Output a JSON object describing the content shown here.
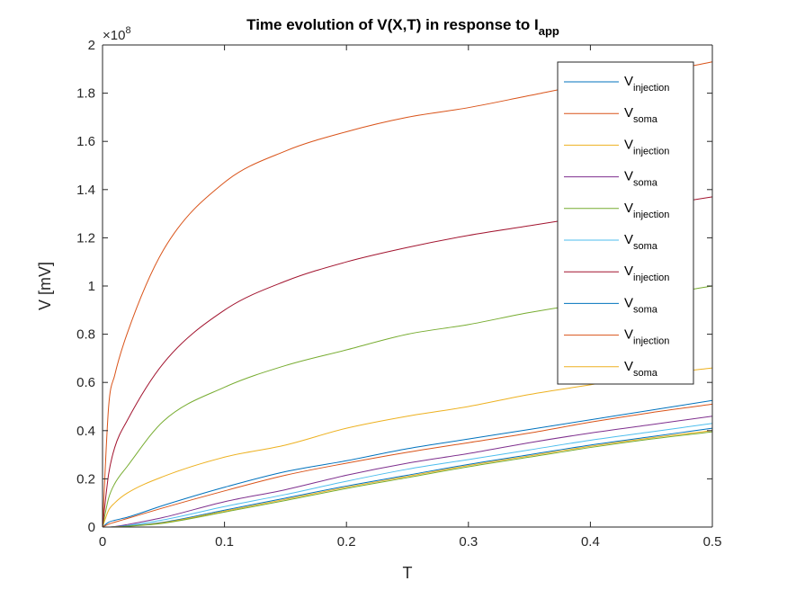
{
  "chart_data": {
    "type": "line",
    "title": "Time evolution of V(X,T) in response to I",
    "title_sub": "app",
    "xlabel": "T",
    "ylabel": "V [mV]",
    "y_exponent_label": "×10",
    "y_exponent_power": "8",
    "xlim": [
      0,
      0.5
    ],
    "ylim": [
      0,
      2
    ],
    "y_scale_factor": 100000000,
    "xticks": [
      0,
      0.1,
      0.2,
      0.3,
      0.4,
      0.5
    ],
    "xtick_labels": [
      "0",
      "0.1",
      "0.2",
      "0.3",
      "0.4",
      "0.5"
    ],
    "yticks": [
      0,
      0.2,
      0.4,
      0.6,
      0.8,
      1,
      1.2,
      1.4,
      1.6,
      1.8,
      2
    ],
    "ytick_labels": [
      "0",
      "0.2",
      "0.4",
      "0.6",
      "0.8",
      "1",
      "1.2",
      "1.4",
      "1.6",
      "1.8",
      "2"
    ],
    "grid": false,
    "legend_position": "top-right",
    "x": [
      0,
      0.005,
      0.01,
      0.02,
      0.05,
      0.1,
      0.15,
      0.2,
      0.25,
      0.3,
      0.35,
      0.4,
      0.45,
      0.5
    ],
    "series": [
      {
        "name": "V",
        "name_sub": "injection",
        "color": "#0072BD",
        "in_legend": true,
        "values": [
          0,
          0.02,
          0.028,
          0.04,
          0.09,
          0.165,
          0.23,
          0.275,
          0.325,
          0.365,
          0.405,
          0.445,
          0.485,
          0.525
        ]
      },
      {
        "name": "V",
        "name_sub": "soma",
        "color": "#D95319",
        "in_legend": true,
        "values": [
          0,
          0.5,
          0.63,
          0.8,
          1.15,
          1.43,
          1.56,
          1.64,
          1.7,
          1.74,
          1.79,
          1.84,
          1.88,
          1.93
        ]
      },
      {
        "name": "V",
        "name_sub": "injection",
        "color": "#EDB120",
        "in_legend": true,
        "values": [
          0,
          0.07,
          0.1,
          0.14,
          0.21,
          0.29,
          0.34,
          0.41,
          0.46,
          0.5,
          0.55,
          0.59,
          0.63,
          0.66
        ]
      },
      {
        "name": "V",
        "name_sub": "soma",
        "color": "#7E2F8E",
        "in_legend": true,
        "values": [
          0,
          0.0,
          0.002,
          0.01,
          0.04,
          0.105,
          0.155,
          0.215,
          0.265,
          0.305,
          0.35,
          0.39,
          0.425,
          0.46
        ]
      },
      {
        "name": "V",
        "name_sub": "injection",
        "color": "#77AC30",
        "in_legend": true,
        "values": [
          0,
          0.12,
          0.18,
          0.25,
          0.44,
          0.58,
          0.67,
          0.735,
          0.8,
          0.84,
          0.89,
          0.93,
          0.96,
          1.0
        ]
      },
      {
        "name": "V",
        "name_sub": "soma",
        "color": "#4DBEEE",
        "in_legend": true,
        "values": [
          0,
          0.0,
          0.001,
          0.006,
          0.03,
          0.085,
          0.135,
          0.19,
          0.24,
          0.28,
          0.32,
          0.36,
          0.395,
          0.43
        ]
      },
      {
        "name": "V",
        "name_sub": "injection",
        "color": "#A2142F",
        "in_legend": true,
        "values": [
          0,
          0.22,
          0.33,
          0.44,
          0.68,
          0.9,
          1.02,
          1.1,
          1.16,
          1.21,
          1.25,
          1.29,
          1.33,
          1.37
        ]
      },
      {
        "name": "V",
        "name_sub": "soma",
        "color": "#0072BD",
        "in_legend": true,
        "values": [
          0,
          0.0,
          0.001,
          0.004,
          0.02,
          0.07,
          0.12,
          0.17,
          0.215,
          0.26,
          0.3,
          0.34,
          0.375,
          0.41
        ]
      },
      {
        "name": "V",
        "name_sub": "injection",
        "color": "#D95319",
        "in_legend": true,
        "values": [
          0,
          0.012,
          0.02,
          0.035,
          0.08,
          0.15,
          0.215,
          0.265,
          0.31,
          0.35,
          0.39,
          0.435,
          0.475,
          0.51
        ]
      },
      {
        "name": "V",
        "name_sub": "soma",
        "color": "#EDB120",
        "in_legend": true,
        "values": [
          0,
          0.0,
          0.001,
          0.003,
          0.018,
          0.066,
          0.115,
          0.165,
          0.21,
          0.255,
          0.295,
          0.335,
          0.37,
          0.4
        ]
      },
      {
        "color": "#77AC30",
        "in_legend": false,
        "values": [
          0,
          0.0,
          0.0,
          0.003,
          0.016,
          0.062,
          0.11,
          0.16,
          0.205,
          0.25,
          0.29,
          0.33,
          0.365,
          0.395
        ]
      }
    ]
  }
}
